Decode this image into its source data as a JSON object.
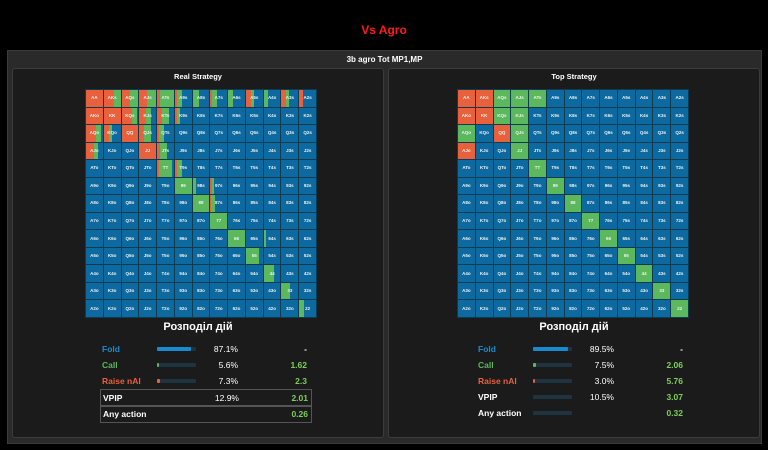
{
  "page_title": "Vs Agro",
  "frame_title": "3b agro Tot MP1,MP",
  "colors": {
    "fold": "#0c6aa0",
    "call": "#5cb85c",
    "raise": "#e8613c",
    "accent_title": "#ff1a1a"
  },
  "hands": [
    [
      "AA",
      "AKs",
      "AQs",
      "AJs",
      "ATs",
      "A9s",
      "A8s",
      "A7s",
      "A6s",
      "A5s",
      "A4s",
      "A3s",
      "A2s"
    ],
    [
      "AKo",
      "KK",
      "KQs",
      "KJs",
      "KTs",
      "K9s",
      "K8s",
      "K7s",
      "K6s",
      "K5s",
      "K4s",
      "K3s",
      "K2s"
    ],
    [
      "AQo",
      "KQo",
      "QQ",
      "QJs",
      "QTs",
      "Q9s",
      "Q8s",
      "Q7s",
      "Q6s",
      "Q5s",
      "Q4s",
      "Q3s",
      "Q2s"
    ],
    [
      "AJo",
      "KJo",
      "QJo",
      "JJ",
      "JTs",
      "J9s",
      "J8s",
      "J7s",
      "J6s",
      "J5s",
      "J4s",
      "J3s",
      "J2s"
    ],
    [
      "ATo",
      "KTo",
      "QTo",
      "JTo",
      "TT",
      "T9s",
      "T8s",
      "T7s",
      "T6s",
      "T5s",
      "T4s",
      "T3s",
      "T2s"
    ],
    [
      "A9o",
      "K9o",
      "Q9o",
      "J9o",
      "T9o",
      "99",
      "98s",
      "97s",
      "96s",
      "95s",
      "94s",
      "93s",
      "92s"
    ],
    [
      "A8o",
      "K8o",
      "Q8o",
      "J8o",
      "T8o",
      "98o",
      "88",
      "87s",
      "86s",
      "85s",
      "84s",
      "83s",
      "82s"
    ],
    [
      "A7o",
      "K7o",
      "Q7o",
      "J7o",
      "T7o",
      "97o",
      "87o",
      "77",
      "76s",
      "75s",
      "74s",
      "73s",
      "72s"
    ],
    [
      "A6o",
      "K6o",
      "Q6o",
      "J6o",
      "T6o",
      "96o",
      "86o",
      "76o",
      "66",
      "65s",
      "64s",
      "63s",
      "62s"
    ],
    [
      "A5o",
      "K5o",
      "Q5o",
      "J5o",
      "T5o",
      "95o",
      "85o",
      "75o",
      "65o",
      "55",
      "54s",
      "53s",
      "52s"
    ],
    [
      "A4o",
      "K4o",
      "Q4o",
      "J4o",
      "T4o",
      "94o",
      "84o",
      "74o",
      "64o",
      "54o",
      "44",
      "43s",
      "42s"
    ],
    [
      "A3o",
      "K3o",
      "Q3o",
      "J3o",
      "T3o",
      "93o",
      "83o",
      "73o",
      "63o",
      "53o",
      "43o",
      "33",
      "32s"
    ],
    [
      "A2o",
      "K2o",
      "Q2o",
      "J2o",
      "T2o",
      "92o",
      "82o",
      "72o",
      "62o",
      "52o",
      "42o",
      "32o",
      "22"
    ]
  ],
  "panels": [
    {
      "title": "Real Strategy",
      "dist_title": "Розподіл дій",
      "stats": [
        {
          "name": "Fold",
          "pct": "87.1%",
          "value": "-",
          "fill": 0.871,
          "color": "#1a8ad0",
          "boxed": false
        },
        {
          "name": "Call",
          "pct": "5.6%",
          "value": "1.62",
          "fill": 0.056,
          "color": "#5cb85c",
          "boxed": false
        },
        {
          "name": "Raise nAI",
          "pct": "7.3%",
          "value": "2.3",
          "fill": 0.073,
          "color": "#e8613c",
          "boxed": false
        },
        {
          "name": "VPIP",
          "pct": "12.9%",
          "value": "2.01",
          "fill": 0,
          "color": "#ffffff",
          "boxed": true
        },
        {
          "name": "Any action",
          "pct": "",
          "value": "0.26",
          "fill": 0,
          "color": "#ffffff",
          "boxed": true
        }
      ],
      "overrides": {
        "0,0": [
          1,
          0
        ],
        "0,1": [
          0.6,
          0.4
        ],
        "0,2": [
          0.5,
          0.5
        ],
        "0,3": [
          0.45,
          0.55
        ],
        "0,4": [
          0.2,
          0.8
        ],
        "0,5": [
          0.1,
          0.3
        ],
        "0,6": [
          0,
          0.4
        ],
        "0,7": [
          0.1,
          0.3
        ],
        "0,8": [
          0,
          0.3
        ],
        "0,9": [
          0.3,
          0.2
        ],
        "0,10": [
          0,
          0.25
        ],
        "0,11": [
          0.25,
          0.2
        ],
        "0,12": [
          0.2,
          0
        ],
        "1,0": [
          1,
          0
        ],
        "1,1": [
          1,
          0
        ],
        "1,2": [
          0.6,
          0.3
        ],
        "1,3": [
          0.4,
          0.3
        ],
        "1,4": [
          0.3,
          0.4
        ],
        "1,5": [
          0.1,
          0.2
        ],
        "2,0": [
          0.6,
          0.3
        ],
        "2,1": [
          0.3,
          0.2
        ],
        "2,2": [
          1,
          0
        ],
        "2,3": [
          0.3,
          0.4
        ],
        "2,4": [
          0.1,
          0.3
        ],
        "3,0": [
          0.5,
          0.2
        ],
        "3,3": [
          1,
          0
        ],
        "3,4": [
          0.15,
          0.45
        ],
        "4,4": [
          0.1,
          0.8
        ],
        "4,5": [
          0.1,
          0.3
        ],
        "5,5": [
          0,
          1
        ],
        "5,6": [
          0,
          0.2
        ],
        "5,7": [
          0.1,
          0.1
        ],
        "6,6": [
          0,
          1
        ],
        "6,7": [
          0.05,
          0.2
        ],
        "7,7": [
          0,
          1
        ],
        "8,8": [
          0,
          1
        ],
        "8,10": [
          0,
          0.15
        ],
        "9,9": [
          0,
          0.8
        ],
        "10,10": [
          0,
          0.6
        ],
        "11,11": [
          0,
          0.5
        ],
        "12,12": [
          0,
          0.3
        ]
      }
    },
    {
      "title": "Top Strategy",
      "dist_title": "Розподіл дій",
      "stats": [
        {
          "name": "Fold",
          "pct": "89.5%",
          "value": "-",
          "fill": 0.895,
          "color": "#1a8ad0",
          "boxed": false
        },
        {
          "name": "Call",
          "pct": "7.5%",
          "value": "2.06",
          "fill": 0.075,
          "color": "#5cb85c",
          "boxed": false
        },
        {
          "name": "Raise nAI",
          "pct": "3.0%",
          "value": "5.76",
          "fill": 0.03,
          "color": "#e8613c",
          "boxed": false
        },
        {
          "name": "VPIP",
          "pct": "10.5%",
          "value": "3.07",
          "fill": 0,
          "color": "#ffffff",
          "boxed": false
        },
        {
          "name": "Any action",
          "pct": "",
          "value": "0.32",
          "fill": 0,
          "color": "#ffffff",
          "boxed": false
        }
      ],
      "overrides": {
        "0,0": [
          1,
          0
        ],
        "0,1": [
          1,
          0
        ],
        "0,2": [
          0,
          1
        ],
        "0,3": [
          0,
          1
        ],
        "0,4": [
          0,
          1
        ],
        "1,0": [
          1,
          0
        ],
        "1,1": [
          1,
          0
        ],
        "1,2": [
          0,
          1
        ],
        "1,3": [
          0,
          1
        ],
        "2,0": [
          0,
          1
        ],
        "2,2": [
          1,
          0
        ],
        "2,3": [
          0,
          1
        ],
        "3,0": [
          1,
          0
        ],
        "3,3": [
          0,
          1
        ],
        "4,4": [
          0,
          1
        ],
        "5,5": [
          0,
          1
        ],
        "6,6": [
          0,
          1
        ],
        "7,7": [
          0,
          1
        ],
        "8,8": [
          0,
          1
        ],
        "9,9": [
          0,
          1
        ],
        "10,10": [
          0,
          1
        ],
        "11,11": [
          0,
          1
        ],
        "12,12": [
          0,
          1
        ]
      }
    }
  ]
}
